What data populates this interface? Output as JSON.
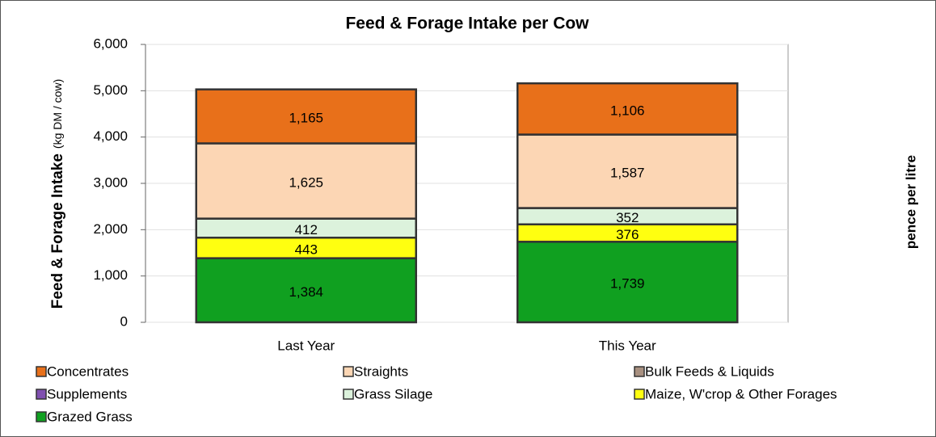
{
  "chart_data": {
    "type": "stacked_bar",
    "title": "Feed & Forage Intake per Cow",
    "y_label": "Feed & Forage Intake",
    "y_label_unit": "(kg DM / cow)",
    "y2_label": "pence per litre",
    "categories": [
      "Last Year",
      "This Year"
    ],
    "series": [
      {
        "name": "Concentrates",
        "color": "#e8701a",
        "values": [
          1165,
          1106
        ],
        "value_labels": [
          "1,165",
          "1,106"
        ]
      },
      {
        "name": "Straights",
        "color": "#fcd6b4",
        "values": [
          1625,
          1587
        ],
        "value_labels": [
          "1,625",
          "1,587"
        ]
      },
      {
        "name": "Bulk Feeds & Liquids",
        "color": "#a89080",
        "values": [
          0,
          0
        ]
      },
      {
        "name": "Supplements",
        "color": "#8050b0",
        "values": [
          0,
          0
        ]
      },
      {
        "name": "Grass Silage",
        "color": "#dcf2dc",
        "values": [
          412,
          352
        ],
        "value_labels": [
          "412",
          "352"
        ]
      },
      {
        "name": "Maize, W'crop & Other Forages",
        "color": "#ffff10",
        "values": [
          443,
          376
        ],
        "value_labels": [
          "443",
          "376"
        ]
      },
      {
        "name": "Grazed Grass",
        "color": "#10a020",
        "values": [
          1384,
          1739
        ],
        "value_labels": [
          "1,384",
          "1,739"
        ]
      }
    ],
    "ylim": [
      0,
      6000
    ],
    "yticks": [
      0,
      {
        "value": 1000,
        "label": "1,000"
      },
      {
        "value": 2000,
        "label": "2,000"
      },
      {
        "value": 3000,
        "label": "3,000"
      },
      {
        "value": 4000,
        "label": "4,000"
      },
      {
        "value": 5000,
        "label": "5,000"
      },
      {
        "value": 6000,
        "label": "6,000"
      }
    ],
    "grid": true,
    "legend": "bottom"
  }
}
